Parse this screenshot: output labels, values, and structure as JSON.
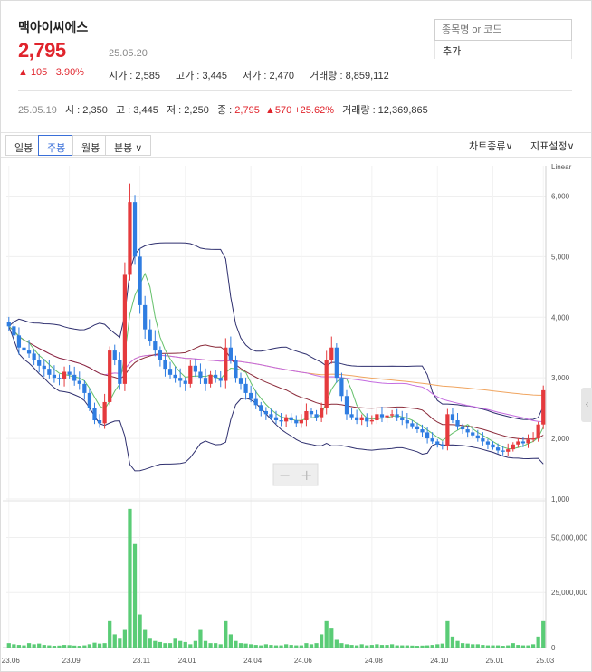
{
  "stock": {
    "name": "맥아이씨에스",
    "price": "2,795",
    "date": "25.05.20",
    "change": "▲ 105 +3.90%",
    "open_label": "시가 : ",
    "open": "2,585",
    "high_label": "고가 : ",
    "high": "3,445",
    "low_label": "저가 : ",
    "low": "2,470",
    "volume_label": "거래량 : ",
    "volume": "8,859,112"
  },
  "search": {
    "placeholder": "종목명 or 코드",
    "add_label": "추가"
  },
  "prev_bar": {
    "date": "25.05.19",
    "open": "시 : 2,350",
    "high": "고 : 3,445",
    "low": "저 : 2,250",
    "close_label": "종 : ",
    "close": "2,795",
    "change": "▲570 +25.62%",
    "volume": "거래량 : 12,369,865"
  },
  "tabs": [
    "일봉",
    "주봉",
    "월봉",
    "분봉 ∨"
  ],
  "active_tab": "주봉",
  "toolbar_right": {
    "chart_type": "차트종류∨",
    "indicator": "지표설정∨"
  },
  "zoom": {
    "out": "−",
    "in": "+"
  },
  "colors": {
    "up": "#e53a3d",
    "down": "#2f7de1",
    "ma5": "#64c06a",
    "ma20": "#8b2b3a",
    "ma60": "#c46be0",
    "ma120": "#f0a560",
    "bollinger": "#2e2f6e",
    "volume": "#5acc76"
  },
  "chart_data": {
    "type": "candlestick",
    "scale": "Linear",
    "price_ticks": [
      "6,000",
      "5,000",
      "4,000",
      "3,000",
      "2,000",
      "1,000"
    ],
    "price_range": [
      1000,
      6500
    ],
    "volume_ticks": [
      "50,000,000",
      "25,000,000",
      "0"
    ],
    "volume_range": [
      0,
      65000000
    ],
    "x_ticks": [
      "23.06",
      "23.09",
      "23.11",
      "24.01",
      "24.04",
      "24.06",
      "24.08",
      "24.10",
      "25.01",
      "25.03"
    ],
    "close": [
      3850,
      3700,
      3500,
      3450,
      3400,
      3300,
      3200,
      3150,
      3050,
      3000,
      2980,
      3100,
      3050,
      2950,
      2900,
      2750,
      2500,
      2300,
      2250,
      2600,
      3450,
      3300,
      2900,
      4700,
      5900,
      5000,
      4200,
      3800,
      3600,
      3450,
      3300,
      3150,
      3050,
      3000,
      2950,
      2900,
      3200,
      3100,
      3000,
      2900,
      3050,
      3000,
      2950,
      3500,
      3300,
      3000,
      2900,
      2750,
      2650,
      2550,
      2450,
      2400,
      2350,
      2300,
      2280,
      2350,
      2300,
      2250,
      2300,
      2450,
      2400,
      2350,
      2500,
      3300,
      3500,
      3000,
      2700,
      2400,
      2350,
      2300,
      2350,
      2280,
      2300,
      2400,
      2350,
      2380,
      2400,
      2350,
      2300,
      2250,
      2200,
      2150,
      2100,
      2000,
      1950,
      1900,
      1880,
      2400,
      2300,
      2200,
      2150,
      2100,
      2050,
      2000,
      1950,
      1900,
      1850,
      1800,
      1780,
      1820,
      1900,
      1950,
      1920,
      1980,
      2000,
      2230,
      2795
    ],
    "volume": [
      2000000,
      1500000,
      1200000,
      1000000,
      2000000,
      1500000,
      1800000,
      1200000,
      1000000,
      800000,
      900000,
      1200000,
      1100000,
      900000,
      800000,
      1000000,
      1500000,
      2200000,
      1800000,
      2000000,
      12000000,
      6000000,
      4000000,
      8000000,
      63000000,
      47000000,
      15000000,
      8000000,
      4000000,
      3000000,
      2500000,
      2000000,
      2000000,
      4000000,
      3000000,
      2500000,
      1500000,
      3000000,
      8000000,
      3000000,
      2000000,
      2000000,
      1500000,
      12000000,
      6000000,
      3000000,
      2000000,
      1800000,
      1500000,
      1200000,
      1000000,
      1500000,
      1200000,
      1000000,
      1000000,
      1500000,
      1200000,
      1000000,
      1000000,
      2000000,
      1500000,
      2000000,
      6000000,
      12000000,
      9000000,
      3500000,
      2000000,
      1500000,
      1200000,
      1000000,
      1500000,
      1000000,
      1200000,
      1500000,
      1200000,
      1200000,
      1500000,
      1000000,
      1000000,
      1000000,
      900000,
      800000,
      900000,
      1000000,
      1200000,
      1500000,
      1800000,
      12000000,
      5000000,
      3000000,
      2000000,
      1800000,
      1500000,
      1500000,
      1200000,
      1000000,
      1000000,
      1000000,
      800000,
      1000000,
      2000000,
      1200000,
      1000000,
      1000000,
      1500000,
      5000000,
      12000000
    ]
  }
}
